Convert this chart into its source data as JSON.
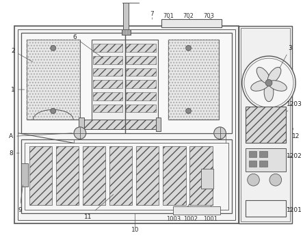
{
  "bg_color": "#ffffff",
  "lc": "#555555",
  "lc_dark": "#333333",
  "fc_light": "#f0f0f0",
  "fc_med": "#e0e0e0",
  "fc_dot": "#d8d8d8",
  "fc_hatch": "#c8c8c8"
}
